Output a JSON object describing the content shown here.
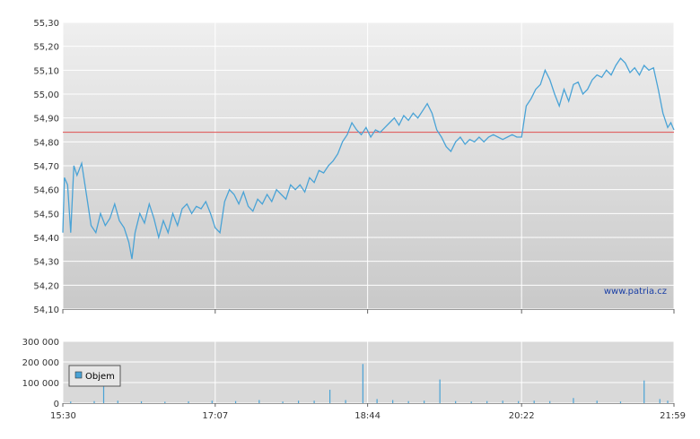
{
  "watermark": "www.patria.cz",
  "chart_data": [
    {
      "type": "line",
      "name": "price",
      "x_ticks": [
        "15:30",
        "17:07",
        "18:44",
        "20:22",
        "21:59"
      ],
      "y_ticks": [
        "55,30",
        "55,20",
        "55,10",
        "55,00",
        "54,90",
        "54,80",
        "54,70",
        "54,60",
        "54,50",
        "54,40",
        "54,30",
        "54,20",
        "54,10"
      ],
      "ylim": [
        54.1,
        55.3
      ],
      "reference_line": 54.84,
      "colors": {
        "line": "#4aa3d6",
        "reference": "#e05050",
        "plot_top": "#efefef",
        "plot_bottom": "#c9c9c9",
        "grid": "#ffffff"
      },
      "series": [
        {
          "points": [
            [
              "15:30",
              54.42
            ],
            [
              "15:31",
              54.65
            ],
            [
              "15:33",
              54.62
            ],
            [
              "15:35",
              54.42
            ],
            [
              "15:37",
              54.7
            ],
            [
              "15:39",
              54.66
            ],
            [
              "15:42",
              54.71
            ],
            [
              "15:45",
              54.58
            ],
            [
              "15:48",
              54.45
            ],
            [
              "15:51",
              54.42
            ],
            [
              "15:54",
              54.5
            ],
            [
              "15:57",
              54.45
            ],
            [
              "16:00",
              54.48
            ],
            [
              "16:03",
              54.54
            ],
            [
              "16:06",
              54.47
            ],
            [
              "16:09",
              54.44
            ],
            [
              "16:12",
              54.38
            ],
            [
              "16:14",
              54.31
            ],
            [
              "16:16",
              54.42
            ],
            [
              "16:19",
              54.5
            ],
            [
              "16:22",
              54.46
            ],
            [
              "16:25",
              54.54
            ],
            [
              "16:28",
              54.48
            ],
            [
              "16:31",
              54.4
            ],
            [
              "16:34",
              54.47
            ],
            [
              "16:37",
              54.42
            ],
            [
              "16:40",
              54.5
            ],
            [
              "16:43",
              54.45
            ],
            [
              "16:46",
              54.52
            ],
            [
              "16:49",
              54.54
            ],
            [
              "16:52",
              54.5
            ],
            [
              "16:55",
              54.53
            ],
            [
              "16:58",
              54.52
            ],
            [
              "17:01",
              54.55
            ],
            [
              "17:04",
              54.5
            ],
            [
              "17:07",
              54.44
            ],
            [
              "17:10",
              54.42
            ],
            [
              "17:13",
              54.55
            ],
            [
              "17:16",
              54.6
            ],
            [
              "17:19",
              54.58
            ],
            [
              "17:22",
              54.54
            ],
            [
              "17:25",
              54.59
            ],
            [
              "17:28",
              54.53
            ],
            [
              "17:31",
              54.51
            ],
            [
              "17:34",
              54.56
            ],
            [
              "17:37",
              54.54
            ],
            [
              "17:40",
              54.58
            ],
            [
              "17:43",
              54.55
            ],
            [
              "17:46",
              54.6
            ],
            [
              "17:49",
              54.58
            ],
            [
              "17:52",
              54.56
            ],
            [
              "17:55",
              54.62
            ],
            [
              "17:58",
              54.6
            ],
            [
              "18:01",
              54.62
            ],
            [
              "18:04",
              54.59
            ],
            [
              "18:07",
              54.65
            ],
            [
              "18:10",
              54.63
            ],
            [
              "18:13",
              54.68
            ],
            [
              "18:16",
              54.67
            ],
            [
              "18:19",
              54.7
            ],
            [
              "18:22",
              54.72
            ],
            [
              "18:25",
              54.75
            ],
            [
              "18:28",
              54.8
            ],
            [
              "18:31",
              54.83
            ],
            [
              "18:34",
              54.88
            ],
            [
              "18:37",
              54.85
            ],
            [
              "18:40",
              54.83
            ],
            [
              "18:43",
              54.86
            ],
            [
              "18:46",
              54.82
            ],
            [
              "18:49",
              54.85
            ],
            [
              "18:52",
              54.84
            ],
            [
              "18:55",
              54.86
            ],
            [
              "18:58",
              54.88
            ],
            [
              "19:01",
              54.9
            ],
            [
              "19:04",
              54.87
            ],
            [
              "19:07",
              54.91
            ],
            [
              "19:10",
              54.89
            ],
            [
              "19:13",
              54.92
            ],
            [
              "19:16",
              54.9
            ],
            [
              "19:19",
              54.93
            ],
            [
              "19:22",
              54.96
            ],
            [
              "19:25",
              54.92
            ],
            [
              "19:28",
              54.85
            ],
            [
              "19:31",
              54.82
            ],
            [
              "19:34",
              54.78
            ],
            [
              "19:37",
              54.76
            ],
            [
              "19:40",
              54.8
            ],
            [
              "19:43",
              54.82
            ],
            [
              "19:46",
              54.79
            ],
            [
              "19:49",
              54.81
            ],
            [
              "19:52",
              54.8
            ],
            [
              "19:55",
              54.82
            ],
            [
              "19:58",
              54.8
            ],
            [
              "20:01",
              54.82
            ],
            [
              "20:04",
              54.83
            ],
            [
              "20:07",
              54.82
            ],
            [
              "20:10",
              54.81
            ],
            [
              "20:13",
              54.82
            ],
            [
              "20:16",
              54.83
            ],
            [
              "20:19",
              54.82
            ],
            [
              "20:22",
              54.82
            ],
            [
              "20:25",
              54.95
            ],
            [
              "20:28",
              54.98
            ],
            [
              "20:31",
              55.02
            ],
            [
              "20:34",
              55.04
            ],
            [
              "20:37",
              55.1
            ],
            [
              "20:40",
              55.06
            ],
            [
              "20:43",
              55.0
            ],
            [
              "20:46",
              54.95
            ],
            [
              "20:49",
              55.02
            ],
            [
              "20:52",
              54.97
            ],
            [
              "20:55",
              55.04
            ],
            [
              "20:58",
              55.05
            ],
            [
              "21:01",
              55.0
            ],
            [
              "21:04",
              55.02
            ],
            [
              "21:07",
              55.06
            ],
            [
              "21:10",
              55.08
            ],
            [
              "21:13",
              55.07
            ],
            [
              "21:16",
              55.1
            ],
            [
              "21:19",
              55.08
            ],
            [
              "21:22",
              55.12
            ],
            [
              "21:25",
              55.15
            ],
            [
              "21:28",
              55.13
            ],
            [
              "21:31",
              55.09
            ],
            [
              "21:34",
              55.11
            ],
            [
              "21:37",
              55.08
            ],
            [
              "21:40",
              55.12
            ],
            [
              "21:43",
              55.1
            ],
            [
              "21:46",
              55.11
            ],
            [
              "21:49",
              55.02
            ],
            [
              "21:52",
              54.92
            ],
            [
              "21:55",
              54.86
            ],
            [
              "21:57",
              54.88
            ],
            [
              "21:59",
              54.85
            ]
          ]
        }
      ]
    },
    {
      "type": "bar",
      "name": "volume",
      "legend": "Objem",
      "x_ticks": [
        "15:30",
        "17:07",
        "18:44",
        "20:22",
        "21:59"
      ],
      "y_ticks": [
        "300 000",
        "200 000",
        "100 000",
        "0"
      ],
      "ylim": [
        0,
        300000
      ],
      "colors": {
        "bar": "#4aa3d6",
        "plot": "#d9d9d9"
      },
      "series": [
        {
          "name": "Objem",
          "points": [
            [
              "15:35",
              8000
            ],
            [
              "15:50",
              10000
            ],
            [
              "15:56",
              100000
            ],
            [
              "16:05",
              12000
            ],
            [
              "16:20",
              9000
            ],
            [
              "16:35",
              7000
            ],
            [
              "16:50",
              9000
            ],
            [
              "17:05",
              12000
            ],
            [
              "17:20",
              10000
            ],
            [
              "17:35",
              15000
            ],
            [
              "17:50",
              8000
            ],
            [
              "18:00",
              12000
            ],
            [
              "18:10",
              12000
            ],
            [
              "18:20",
              65000
            ],
            [
              "18:30",
              15000
            ],
            [
              "18:41",
              190000
            ],
            [
              "18:50",
              20000
            ],
            [
              "19:00",
              15000
            ],
            [
              "19:10",
              10000
            ],
            [
              "19:20",
              12000
            ],
            [
              "19:30",
              115000
            ],
            [
              "19:40",
              10000
            ],
            [
              "19:50",
              8000
            ],
            [
              "20:00",
              10000
            ],
            [
              "20:10",
              12000
            ],
            [
              "20:20",
              10000
            ],
            [
              "20:30",
              12000
            ],
            [
              "20:40",
              10000
            ],
            [
              "20:55",
              25000
            ],
            [
              "21:10",
              12000
            ],
            [
              "21:25",
              8000
            ],
            [
              "21:40",
              110000
            ],
            [
              "21:50",
              20000
            ],
            [
              "21:55",
              12000
            ]
          ]
        }
      ]
    }
  ]
}
